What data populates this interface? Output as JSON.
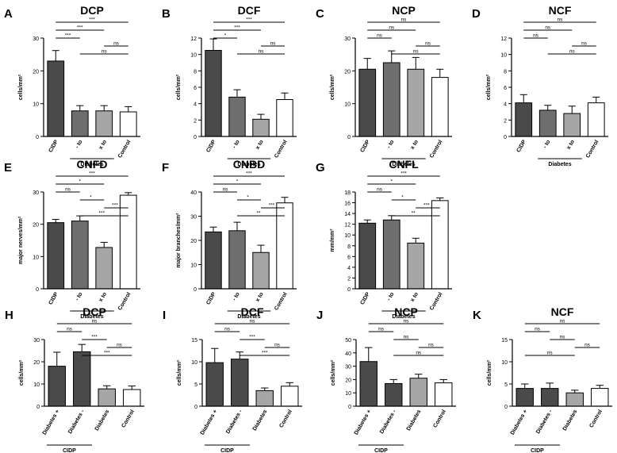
{
  "chart_data": [
    {
      "id": "A",
      "type": "bar",
      "title": "DCP",
      "ylabel": "cells/mm²",
      "ylim": [
        0,
        30
      ],
      "yticks": [
        0,
        10,
        20,
        30
      ],
      "categories": [
        "CIDP",
        "- to",
        "x to",
        "Control"
      ],
      "values": [
        23,
        7.8,
        7.8,
        7.5
      ],
      "errors": [
        3.2,
        1.6,
        1.6,
        1.6
      ],
      "colors": [
        "#4a4a4a",
        "#6e6e6e",
        "#a6a6a6",
        "#ffffff"
      ],
      "group_label": "Diabetes",
      "group_span": [
        1,
        2
      ],
      "significance": [
        {
          "from": 0,
          "to": 3,
          "label": "***"
        },
        {
          "from": 0,
          "to": 2,
          "label": "***"
        },
        {
          "from": 0,
          "to": 1,
          "label": "***"
        },
        {
          "from": 2,
          "to": 3,
          "label": "ns"
        },
        {
          "from": 1,
          "to": 3,
          "label": "ns"
        }
      ]
    },
    {
      "id": "B",
      "type": "bar",
      "title": "DCF",
      "ylabel": "cells/mm²",
      "ylim": [
        0,
        12
      ],
      "yticks": [
        0,
        2,
        4,
        6,
        8,
        10,
        12
      ],
      "categories": [
        "CIDP",
        "- to",
        "x to",
        "Control"
      ],
      "values": [
        10.5,
        4.8,
        2.1,
        4.5
      ],
      "errors": [
        1.4,
        0.9,
        0.6,
        0.8
      ],
      "colors": [
        "#4a4a4a",
        "#6e6e6e",
        "#a6a6a6",
        "#ffffff"
      ],
      "group_label": "Diabetes",
      "group_span": [
        1,
        2
      ],
      "significance": [
        {
          "from": 0,
          "to": 3,
          "label": "***"
        },
        {
          "from": 0,
          "to": 2,
          "label": "***"
        },
        {
          "from": 0,
          "to": 1,
          "label": "*"
        },
        {
          "from": 2,
          "to": 3,
          "label": "ns"
        },
        {
          "from": 1,
          "to": 3,
          "label": "ns"
        }
      ]
    },
    {
      "id": "C",
      "type": "bar",
      "title": "NCP",
      "ylabel": "cells/mm²",
      "ylim": [
        0,
        30
      ],
      "yticks": [
        0,
        10,
        20,
        30
      ],
      "categories": [
        "CIDP",
        "- to",
        "x to",
        "Control"
      ],
      "values": [
        20.5,
        22.5,
        20.5,
        18
      ],
      "errors": [
        3.3,
        3.6,
        3.6,
        2.5
      ],
      "colors": [
        "#4a4a4a",
        "#6e6e6e",
        "#a6a6a6",
        "#ffffff"
      ],
      "group_label": "Diabetes",
      "group_span": [
        1,
        2
      ],
      "significance": [
        {
          "from": 0,
          "to": 3,
          "label": "ns"
        },
        {
          "from": 0,
          "to": 2,
          "label": "ns"
        },
        {
          "from": 0,
          "to": 1,
          "label": "ns"
        },
        {
          "from": 2,
          "to": 3,
          "label": "ns"
        },
        {
          "from": 1,
          "to": 3,
          "label": "ns"
        }
      ]
    },
    {
      "id": "D",
      "type": "bar",
      "title": "NCF",
      "ylabel": "cells/mm²",
      "ylim": [
        0,
        12
      ],
      "yticks": [
        0,
        2,
        4,
        6,
        8,
        10,
        12
      ],
      "categories": [
        "CIDP",
        "- to",
        "x to",
        "Control"
      ],
      "values": [
        4.1,
        3.2,
        2.8,
        4.1
      ],
      "errors": [
        1.0,
        0.6,
        0.9,
        0.7
      ],
      "colors": [
        "#4a4a4a",
        "#6e6e6e",
        "#a6a6a6",
        "#ffffff"
      ],
      "group_label": "Diabetes",
      "group_span": [
        1,
        2
      ],
      "significance": [
        {
          "from": 0,
          "to": 3,
          "label": "ns"
        },
        {
          "from": 0,
          "to": 2,
          "label": "ns"
        },
        {
          "from": 0,
          "to": 1,
          "label": "ns"
        },
        {
          "from": 2,
          "to": 3,
          "label": "ns"
        },
        {
          "from": 1,
          "to": 3,
          "label": "ns"
        }
      ]
    },
    {
      "id": "E",
      "type": "bar",
      "title": "CNFD",
      "ylabel": "major nerves/mm²",
      "ylim": [
        0,
        30
      ],
      "yticks": [
        0,
        10,
        20,
        30
      ],
      "categories": [
        "CIDP",
        "- to",
        "x to",
        "Control"
      ],
      "values": [
        20.5,
        21,
        12.8,
        29
      ],
      "errors": [
        1.0,
        1.6,
        1.6,
        0.8
      ],
      "colors": [
        "#4a4a4a",
        "#6e6e6e",
        "#a6a6a6",
        "#ffffff"
      ],
      "group_label": "Diabetes",
      "group_span": [
        1,
        2
      ],
      "significance": [
        {
          "from": 0,
          "to": 3,
          "label": "***"
        },
        {
          "from": 0,
          "to": 2,
          "label": "*"
        },
        {
          "from": 0,
          "to": 1,
          "label": "ns"
        },
        {
          "from": 1,
          "to": 2,
          "label": "*"
        },
        {
          "from": 2,
          "to": 3,
          "label": "***"
        },
        {
          "from": 1,
          "to": 3,
          "label": "***"
        }
      ]
    },
    {
      "id": "F",
      "type": "bar",
      "title": "CNBD",
      "ylabel": "major branches/mm²",
      "ylim": [
        0,
        40
      ],
      "yticks": [
        0,
        10,
        20,
        30,
        40
      ],
      "categories": [
        "CIDP",
        "- to",
        "x to",
        "Control"
      ],
      "values": [
        23.5,
        24,
        15,
        35.5
      ],
      "errors": [
        2.0,
        3.5,
        3.0,
        2.3
      ],
      "colors": [
        "#4a4a4a",
        "#6e6e6e",
        "#a6a6a6",
        "#ffffff"
      ],
      "group_label": "Diabetes",
      "group_span": [
        1,
        2
      ],
      "significance": [
        {
          "from": 0,
          "to": 3,
          "label": "***"
        },
        {
          "from": 0,
          "to": 2,
          "label": "*"
        },
        {
          "from": 0,
          "to": 1,
          "label": "ns"
        },
        {
          "from": 1,
          "to": 2,
          "label": "*"
        },
        {
          "from": 2,
          "to": 3,
          "label": "***"
        },
        {
          "from": 1,
          "to": 3,
          "label": "**"
        }
      ]
    },
    {
      "id": "G",
      "type": "bar",
      "title": "CNFL",
      "ylabel": "mm/mm²",
      "ylim": [
        0,
        18
      ],
      "yticks": [
        0,
        2,
        4,
        6,
        8,
        10,
        12,
        14,
        16,
        18
      ],
      "categories": [
        "CIDP",
        "- to",
        "x to",
        "Control"
      ],
      "values": [
        12.2,
        12.8,
        8.5,
        16.4
      ],
      "errors": [
        0.6,
        0.8,
        0.9,
        0.5
      ],
      "colors": [
        "#4a4a4a",
        "#6e6e6e",
        "#a6a6a6",
        "#ffffff"
      ],
      "group_label": "Diabetes",
      "group_span": [
        1,
        2
      ],
      "significance": [
        {
          "from": 0,
          "to": 3,
          "label": "***"
        },
        {
          "from": 0,
          "to": 2,
          "label": "*"
        },
        {
          "from": 0,
          "to": 1,
          "label": "ns"
        },
        {
          "from": 1,
          "to": 2,
          "label": "*"
        },
        {
          "from": 2,
          "to": 3,
          "label": "***"
        },
        {
          "from": 1,
          "to": 3,
          "label": "**"
        }
      ]
    },
    {
      "id": "H",
      "type": "bar",
      "title": "DCP",
      "ylabel": "cells/mm²",
      "ylim": [
        0,
        30
      ],
      "yticks": [
        0,
        10,
        20,
        30
      ],
      "categories": [
        "Diabetes +",
        "Diabetes -",
        "Diabetes",
        "Control"
      ],
      "values": [
        18,
        24.5,
        7.8,
        7.5
      ],
      "errors": [
        6.3,
        3.3,
        1.4,
        1.6
      ],
      "colors": [
        "#4a4a4a",
        "#4a4a4a",
        "#a6a6a6",
        "#ffffff"
      ],
      "group_label": "CIDP",
      "group_span": [
        0,
        1
      ],
      "significance": [
        {
          "from": 0,
          "to": 3,
          "label": "ns"
        },
        {
          "from": 0,
          "to": 1,
          "label": "ns"
        },
        {
          "from": 1,
          "to": 2,
          "label": "***"
        },
        {
          "from": 2,
          "to": 3,
          "label": "ns"
        },
        {
          "from": 1,
          "to": 3,
          "label": "***"
        }
      ]
    },
    {
      "id": "I",
      "type": "bar",
      "title": "DCF",
      "ylabel": "cells/mm²",
      "ylim": [
        0,
        15
      ],
      "yticks": [
        0,
        5,
        10,
        15
      ],
      "categories": [
        "Diabetes +",
        "Diabetes -",
        "Diabetes",
        "Control"
      ],
      "values": [
        9.8,
        10.6,
        3.5,
        4.5
      ],
      "errors": [
        3.2,
        1.6,
        0.6,
        0.8
      ],
      "colors": [
        "#4a4a4a",
        "#4a4a4a",
        "#a6a6a6",
        "#ffffff"
      ],
      "group_label": "CIDP",
      "group_span": [
        0,
        1
      ],
      "significance": [
        {
          "from": 0,
          "to": 3,
          "label": "ns"
        },
        {
          "from": 0,
          "to": 1,
          "label": "ns"
        },
        {
          "from": 1,
          "to": 2,
          "label": "***"
        },
        {
          "from": 2,
          "to": 3,
          "label": "ns"
        },
        {
          "from": 1,
          "to": 3,
          "label": "***"
        }
      ]
    },
    {
      "id": "J",
      "type": "bar",
      "title": "NCP",
      "ylabel": "cells/mm²",
      "ylim": [
        0,
        50
      ],
      "yticks": [
        0,
        10,
        20,
        30,
        40,
        50
      ],
      "categories": [
        "Diabetes +",
        "Diabetes -",
        "Diabetes",
        "Control"
      ],
      "values": [
        33.5,
        17,
        21,
        17.5
      ],
      "errors": [
        10.5,
        3,
        3,
        2.5
      ],
      "colors": [
        "#4a4a4a",
        "#4a4a4a",
        "#a6a6a6",
        "#ffffff"
      ],
      "group_label": "CIDP",
      "group_span": [
        0,
        1
      ],
      "significance": [
        {
          "from": 0,
          "to": 3,
          "label": "ns"
        },
        {
          "from": 0,
          "to": 1,
          "label": "ns"
        },
        {
          "from": 1,
          "to": 2,
          "label": "ns"
        },
        {
          "from": 2,
          "to": 3,
          "label": "ns"
        },
        {
          "from": 1,
          "to": 3,
          "label": "ns"
        }
      ]
    },
    {
      "id": "K",
      "type": "bar",
      "title": "NCF",
      "ylabel": "cells/mm²",
      "ylim": [
        0,
        15
      ],
      "yticks": [
        0,
        5,
        10,
        15
      ],
      "categories": [
        "Diabetes +",
        "Diabetes -",
        "Diabetes",
        "Control"
      ],
      "values": [
        4,
        4,
        3,
        4
      ],
      "errors": [
        1,
        1.2,
        0.6,
        0.7
      ],
      "colors": [
        "#4a4a4a",
        "#4a4a4a",
        "#a6a6a6",
        "#ffffff"
      ],
      "group_label": "CIDP",
      "group_span": [
        0,
        1
      ],
      "significance": [
        {
          "from": 0,
          "to": 3,
          "label": "ns"
        },
        {
          "from": 0,
          "to": 1,
          "label": "ns"
        },
        {
          "from": 1,
          "to": 2,
          "label": "ns"
        },
        {
          "from": 2,
          "to": 3,
          "label": "ns"
        },
        {
          "from": 0,
          "to": 2,
          "label": "ns"
        }
      ]
    }
  ]
}
